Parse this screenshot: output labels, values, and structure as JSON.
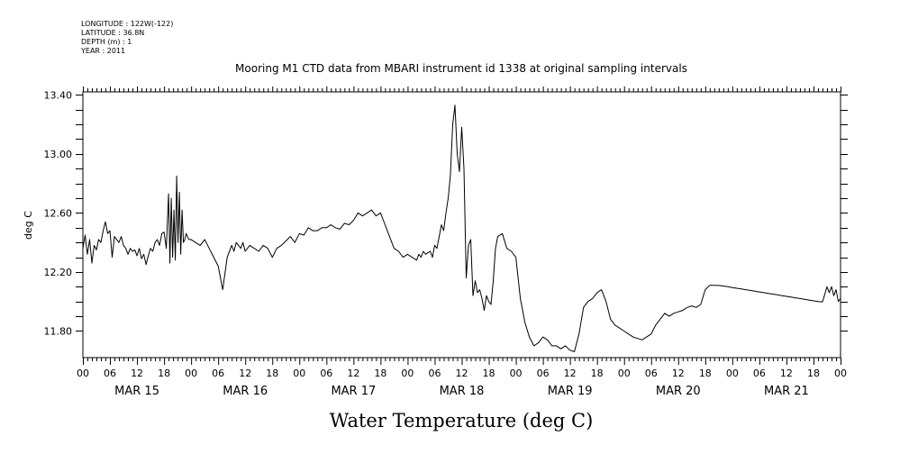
{
  "header": {
    "lines": [
      "LONGITUDE : 122W(-122)",
      "LATITUDE : 36.8N",
      "DEPTH (m) : 1",
      "YEAR : 2011"
    ]
  },
  "chart_data": {
    "type": "line",
    "title": "Mooring M1 CTD data from MBARI instrument id 1338 at original sampling intervals",
    "xlabel": "Water Temperature (deg C)",
    "ylabel": "deg C",
    "xlim": [
      0,
      168
    ],
    "ylim": [
      11.62,
      13.42
    ],
    "y_ticks": [
      "11.80",
      "12.20",
      "12.60",
      "13.00",
      "13.40"
    ],
    "x_hour_labels": [
      "00",
      "06",
      "12",
      "18",
      "00",
      "06",
      "12",
      "18",
      "00",
      "06",
      "12",
      "18",
      "00",
      "06",
      "12",
      "18",
      "00",
      "06",
      "12",
      "18",
      "00",
      "06",
      "12",
      "18",
      "00",
      "06",
      "12",
      "18",
      "00"
    ],
    "day_labels": [
      "MAR 15",
      "MAR 16",
      "MAR 17",
      "MAR 18",
      "MAR 19",
      "MAR 20",
      "MAR 21"
    ],
    "x_units": "hours since MAR 15 00:00",
    "series": [
      {
        "x": [
          0,
          0.5,
          1,
          1.5,
          2,
          2.5,
          3,
          3.5,
          4,
          4.5,
          5,
          5.5,
          6,
          6.5,
          7,
          7.5,
          8,
          8.5,
          9,
          9.5,
          10,
          10.5,
          11,
          11.5,
          12,
          12.5,
          13,
          13.5,
          14,
          14.5,
          15,
          15.5,
          16,
          16.5,
          17,
          17.5,
          18,
          18.5,
          19,
          19.3,
          19.6,
          19.9,
          20.2,
          20.5,
          20.8,
          21.1,
          21.4,
          21.7,
          22,
          22.3,
          22.6,
          22.9,
          23.2,
          23.5,
          24,
          25,
          26,
          27,
          28,
          29,
          30,
          31,
          32,
          33,
          33.5,
          34,
          34.5,
          35,
          35.5,
          36,
          37,
          38,
          39,
          40,
          41,
          42,
          43,
          44,
          45,
          46,
          47,
          48,
          49,
          50,
          51,
          52,
          53,
          54,
          55,
          56,
          57,
          58,
          59,
          60,
          61,
          62,
          63,
          64,
          65,
          66,
          67,
          68,
          69,
          70,
          71,
          72,
          73,
          74,
          74.5,
          75,
          75.5,
          76,
          76.5,
          77,
          77.5,
          78,
          78.5,
          79,
          79.5,
          80,
          80.5,
          81,
          81.5,
          82,
          82.5,
          83,
          83.5,
          84,
          84.5,
          85,
          85.5,
          86,
          86.5,
          87,
          87.5,
          88,
          88.5,
          89,
          89.5,
          90,
          90.5,
          91,
          91.5,
          92,
          93,
          94,
          95,
          96,
          97,
          98,
          99,
          100,
          101,
          102,
          103,
          104,
          105,
          106,
          107,
          108,
          109,
          110,
          111,
          112,
          113,
          114,
          115,
          116,
          117,
          118,
          119,
          120,
          121,
          122,
          123,
          124,
          125,
          126,
          127,
          128,
          129,
          130,
          131,
          132,
          133,
          134,
          135,
          136,
          137,
          138,
          139,
          140,
          141,
          142,
          143,
          144,
          145,
          146,
          147,
          148,
          149,
          150,
          151,
          152,
          153,
          154,
          155,
          156,
          157,
          158,
          159,
          160,
          161,
          162,
          163,
          164,
          165,
          165.5,
          166,
          166.5,
          167,
          167.5,
          168
        ],
        "y": [
          12.36,
          12.45,
          12.32,
          12.42,
          12.26,
          12.38,
          12.35,
          12.42,
          12.4,
          12.48,
          12.54,
          12.46,
          12.48,
          12.3,
          12.44,
          12.42,
          12.4,
          12.44,
          12.38,
          12.36,
          12.32,
          12.36,
          12.34,
          12.35,
          12.31,
          12.36,
          12.29,
          12.32,
          12.25,
          12.31,
          12.36,
          12.34,
          12.4,
          12.42,
          12.38,
          12.46,
          12.47,
          12.36,
          12.73,
          12.26,
          12.7,
          12.3,
          12.62,
          12.28,
          12.85,
          12.4,
          12.74,
          12.32,
          12.62,
          12.4,
          12.42,
          12.46,
          12.44,
          12.42,
          12.42,
          12.4,
          12.38,
          12.42,
          12.36,
          12.3,
          12.24,
          12.08,
          12.3,
          12.38,
          12.34,
          12.4,
          12.38,
          12.36,
          12.4,
          12.34,
          12.38,
          12.36,
          12.34,
          12.38,
          12.36,
          12.3,
          12.36,
          12.38,
          12.41,
          12.44,
          12.4,
          12.46,
          12.45,
          12.5,
          12.48,
          12.48,
          12.5,
          12.5,
          12.52,
          12.5,
          12.49,
          12.53,
          12.52,
          12.55,
          12.6,
          12.58,
          12.6,
          12.62,
          12.58,
          12.6,
          12.52,
          12.44,
          12.36,
          12.34,
          12.3,
          12.32,
          12.3,
          12.28,
          12.32,
          12.3,
          12.34,
          12.32,
          12.33,
          12.34,
          12.3,
          12.38,
          12.36,
          12.44,
          12.52,
          12.48,
          12.6,
          12.7,
          12.86,
          13.2,
          13.33,
          13.0,
          12.88,
          13.18,
          12.9,
          12.16,
          12.38,
          12.42,
          12.04,
          12.14,
          12.06,
          12.08,
          12.02,
          11.94,
          12.04,
          12.0,
          11.98,
          12.14,
          12.36,
          12.44,
          12.46,
          12.36,
          12.34,
          12.3,
          12.02,
          11.86,
          11.76,
          11.7,
          11.72,
          11.76,
          11.74,
          11.7,
          11.7,
          11.68,
          11.7,
          11.67,
          11.66,
          11.78,
          11.96,
          12.0,
          12.02,
          12.06,
          12.08,
          12.0,
          11.88,
          11.84,
          11.82,
          11.8,
          11.78,
          11.76,
          11.75,
          11.74,
          11.76,
          11.78,
          11.84,
          11.88,
          11.92,
          11.9,
          11.92,
          11.93,
          11.94,
          11.96,
          11.97,
          11.96,
          11.98,
          12.08,
          12.11,
          12.11,
          12.109,
          12.105,
          12.1,
          12.095,
          12.09,
          12.085,
          12.08,
          12.075,
          12.07,
          12.065,
          12.06,
          12.055,
          12.05,
          12.045,
          12.04,
          12.035,
          12.03,
          12.025,
          12.02,
          12.015,
          12.01,
          12.005,
          12.0,
          11.998,
          12.1,
          12.06,
          12.1,
          12.04,
          12.08,
          12.0,
          12.02
        ]
      }
    ],
    "grid": false,
    "colors": {
      "line": "#000000",
      "axis": "#000000",
      "background": "#ffffff"
    }
  }
}
